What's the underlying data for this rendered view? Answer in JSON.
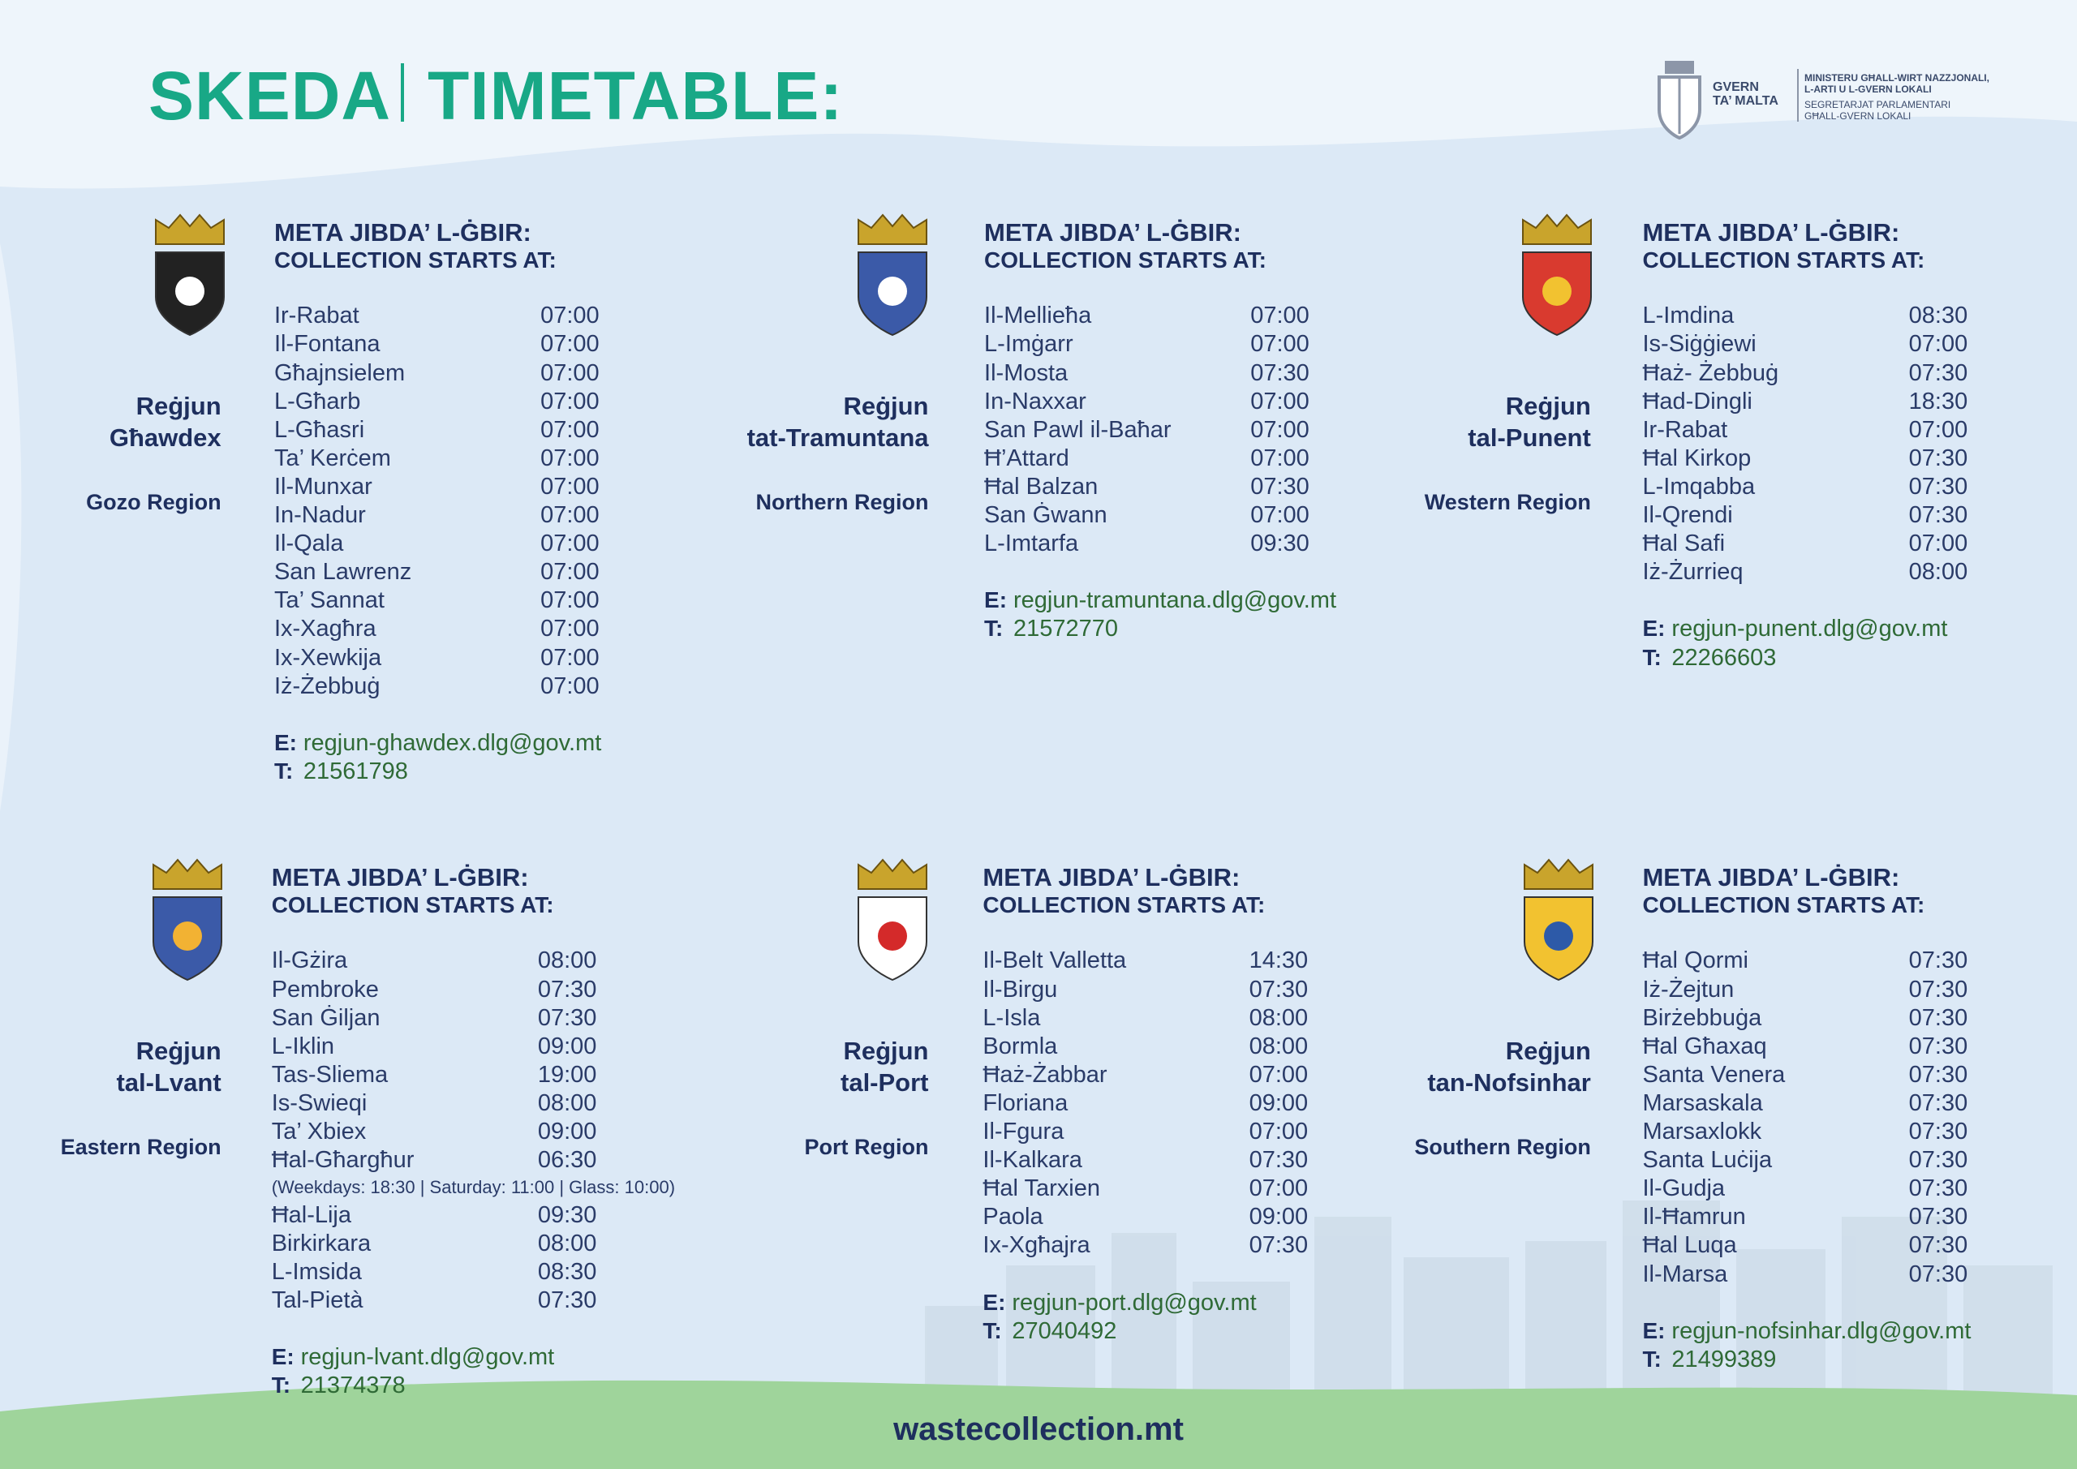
{
  "header": {
    "title_left": "SKEDA",
    "title_right": "TIMETABLE:",
    "logo": {
      "name_line1": "GVERN",
      "name_line2": "TA’ MALTA",
      "ministry_line1": "MINISTERU GĦALL-WIRT NAZZJONALI,",
      "ministry_line2": "L-ARTI U L-GVERN LOKALI",
      "secretariat_line1": "SEGRETARJAT PARLAMENTARI",
      "secretariat_line2": "GĦALL-GVERN LOKALI"
    }
  },
  "labels": {
    "heading": "META JIBDA’ L-ĠBIR:",
    "subheading": "COLLECTION STARTS AT:",
    "email": "E:",
    "phone": "T:"
  },
  "regions": [
    {
      "name_line1": "Reġjun",
      "name_line2": "Għawdex",
      "english": "Gozo Region",
      "rows": [
        {
          "place": "Ir-Rabat",
          "time": "07:00"
        },
        {
          "place": "Il-Fontana",
          "time": "07:00"
        },
        {
          "place": "Għajnsielem",
          "time": "07:00"
        },
        {
          "place": "L-Għarb",
          "time": "07:00"
        },
        {
          "place": "L-Għasri",
          "time": "07:00"
        },
        {
          "place": "Ta’ Kerċem",
          "time": "07:00"
        },
        {
          "place": "Il-Munxar",
          "time": "07:00"
        },
        {
          "place": "In-Nadur",
          "time": "07:00"
        },
        {
          "place": "Il-Qala",
          "time": "07:00"
        },
        {
          "place": "San Lawrenz",
          "time": "07:00"
        },
        {
          "place": "Ta’ Sannat",
          "time": "07:00"
        },
        {
          "place": "Ix-Xagħra",
          "time": "07:00"
        },
        {
          "place": "Ix-Xewkija",
          "time": "07:00"
        },
        {
          "place": "Iż-Żebbuġ",
          "time": "07:00"
        }
      ],
      "email": "regjun-ghawdex.dlg@gov.mt",
      "phone": "21561798"
    },
    {
      "name_line1": "Reġjun",
      "name_line2": "tat-Tramuntana",
      "english": "Northern Region",
      "rows": [
        {
          "place": "Il-Mellieħa",
          "time": "07:00"
        },
        {
          "place": "L-Imġarr",
          "time": "07:00"
        },
        {
          "place": "Il-Mosta",
          "time": "07:30"
        },
        {
          "place": "In-Naxxar",
          "time": "07:00"
        },
        {
          "place": "San Pawl il-Baħar",
          "time": "07:00"
        },
        {
          "place": "Ħ’Attard",
          "time": "07:00"
        },
        {
          "place": "Ħal Balzan",
          "time": "07:30"
        },
        {
          "place": "San Ġwann",
          "time": "07:00"
        },
        {
          "place": "L-Imtarfa",
          "time": "09:30"
        }
      ],
      "email": "regjun-tramuntana.dlg@gov.mt",
      "phone": "21572770"
    },
    {
      "name_line1": "Reġjun",
      "name_line2": "tal-Punent",
      "english": "Western Region",
      "rows": [
        {
          "place": "L-Imdina",
          "time": "08:30"
        },
        {
          "place": "Is-Siġġiewi",
          "time": "07:00"
        },
        {
          "place": "Ħaż- Żebbuġ",
          "time": "07:30"
        },
        {
          "place": "Ħad-Dingli",
          "time": "18:30"
        },
        {
          "place": "Ir-Rabat",
          "time": "07:00"
        },
        {
          "place": "Ħal Kirkop",
          "time": "07:30"
        },
        {
          "place": "L-Imqabba",
          "time": "07:30"
        },
        {
          "place": "Il-Qrendi",
          "time": "07:30"
        },
        {
          "place": "Ħal Safi",
          "time": "07:00"
        },
        {
          "place": "Iż-Żurrieq",
          "time": "08:00"
        }
      ],
      "email": "regjun-punent.dlg@gov.mt",
      "phone": "22266603"
    },
    {
      "name_line1": "Reġjun",
      "name_line2": "tal-Lvant",
      "english": "Eastern Region",
      "rows": [
        {
          "place": "Il-Gżira",
          "time": "08:00"
        },
        {
          "place": "Pembroke",
          "time": "07:30"
        },
        {
          "place": "San Ġiljan",
          "time": "07:30"
        },
        {
          "place": "L-Iklin",
          "time": "09:00"
        },
        {
          "place": "Tas-Sliema",
          "time": "19:00"
        },
        {
          "place": "Is-Swieqi",
          "time": "08:00"
        },
        {
          "place": "Ta’ Xbiex",
          "time": "09:00"
        },
        {
          "place": "Ħal-Għargħur",
          "time": "06:30",
          "note": "(Weekdays: 18:30 | Saturday: 11:00 | Glass: 10:00)"
        },
        {
          "place": "Ħal-Lija",
          "time": "09:30"
        },
        {
          "place": "Birkirkara",
          "time": "08:00"
        },
        {
          "place": "L-Imsida",
          "time": "08:30"
        },
        {
          "place": "Tal-Pietà",
          "time": "07:30"
        }
      ],
      "email": "regjun-lvant.dlg@gov.mt",
      "phone": "21374378"
    },
    {
      "name_line1": "Reġjun",
      "name_line2": "tal-Port",
      "english": "Port Region",
      "rows": [
        {
          "place": "Il-Belt Valletta",
          "time": "14:30"
        },
        {
          "place": "Il-Birgu",
          "time": "07:30"
        },
        {
          "place": "L-Isla",
          "time": "08:00"
        },
        {
          "place": "Bormla",
          "time": "08:00"
        },
        {
          "place": "Ħaż-Żabbar",
          "time": "07:00"
        },
        {
          "place": "Floriana",
          "time": "09:00"
        },
        {
          "place": "Il-Fgura",
          "time": "07:00"
        },
        {
          "place": "Il-Kalkara",
          "time": "07:30"
        },
        {
          "place": "Ħal Tarxien",
          "time": "07:00"
        },
        {
          "place": "Paola",
          "time": "09:00"
        },
        {
          "place": "Ix-Xgħajra",
          "time": "07:30"
        }
      ],
      "email": "regjun-port.dlg@gov.mt",
      "phone": "27040492"
    },
    {
      "name_line1": "Reġjun",
      "name_line2": "tan-Nofsinhar",
      "english": "Southern Region",
      "rows": [
        {
          "place": "Ħal Qormi",
          "time": "07:30"
        },
        {
          "place": "Iż-Żejtun",
          "time": "07:30"
        },
        {
          "place": "Birżebbuġa",
          "time": "07:30"
        },
        {
          "place": "Ħal Għaxaq",
          "time": "07:30"
        },
        {
          "place": "Santa Venera",
          "time": "07:30"
        },
        {
          "place": "Marsaskala",
          "time": "07:30"
        },
        {
          "place": "Marsaxlokk",
          "time": "07:30"
        },
        {
          "place": "Santa Luċija",
          "time": "07:30"
        },
        {
          "place": "Il-Gudja",
          "time": "07:30"
        },
        {
          "place": "Il-Ħamrun",
          "time": "07:30"
        },
        {
          "place": "Ħal Luqa",
          "time": "07:30"
        },
        {
          "place": "Il-Marsa",
          "time": "07:30"
        }
      ],
      "email": "regjun-nofsinhar.dlg@gov.mt",
      "phone": "21499389"
    }
  ],
  "footer": {
    "website": "wastecollection.mt"
  }
}
